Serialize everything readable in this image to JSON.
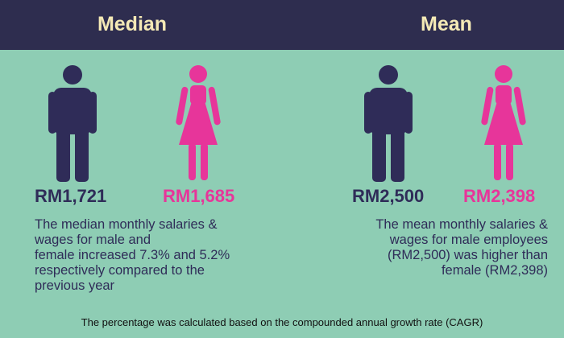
{
  "header": {
    "median_label": "Median",
    "mean_label": "Mean"
  },
  "median": {
    "male_amount": "RM1,721",
    "female_amount": "RM1,685",
    "note": "The median monthly salaries &\nwages for male and\nfemale increased 7.3% and 5.2%\nrespectively compared to the\nprevious year"
  },
  "mean": {
    "male_amount": "RM2,500",
    "female_amount": "RM2,398",
    "note": "The mean monthly salaries &\nwages for male employees\n(RM2,500) was higher than\nfemale (RM2,398)"
  },
  "footnote": "The percentage was calculated based on the compounded annual growth rate (CAGR)",
  "colors": {
    "background": "#8ECDB4",
    "header": "#2E2D4F",
    "header_text": "#F4E9B6",
    "male": "#2F2C58",
    "female": "#E7359A"
  },
  "icons": [
    "male-figure-icon",
    "female-figure-icon"
  ]
}
